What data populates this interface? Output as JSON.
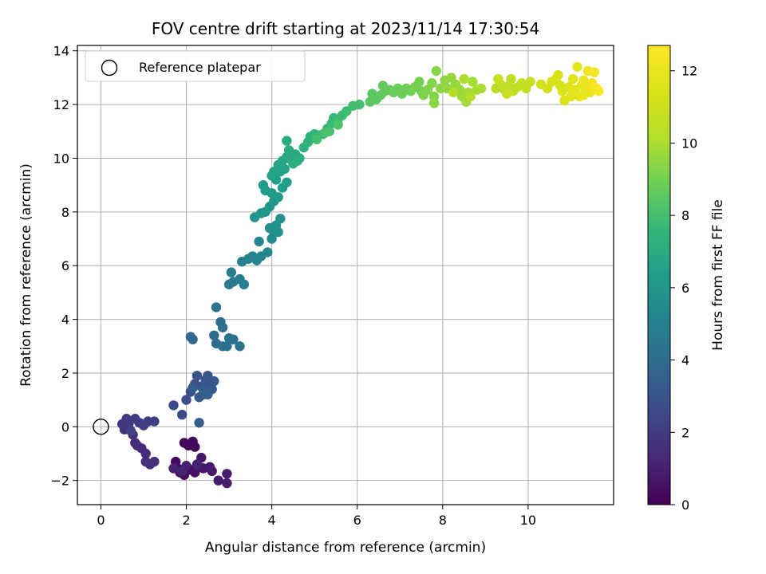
{
  "chart_data": {
    "type": "scatter",
    "title": "FOV centre drift starting at 2023/11/14 17:30:54",
    "xlabel": "Angular distance from reference (arcmin)",
    "ylabel": "Rotation from reference (arcmin)",
    "xlim": [
      -0.55,
      12.0
    ],
    "ylim": [
      -2.9,
      14.2
    ],
    "xticks": [
      0,
      2,
      4,
      6,
      8,
      10
    ],
    "yticks": [
      -2,
      0,
      2,
      4,
      6,
      8,
      10,
      12,
      14
    ],
    "grid": true,
    "legend": {
      "position": "top-left",
      "entries": [
        "Reference platepar"
      ]
    },
    "reference_point": {
      "x": 0,
      "y": 0
    },
    "colorbar": {
      "label": "Hours from first FF file",
      "range": [
        0,
        12.7
      ],
      "ticks": [
        0,
        2,
        4,
        6,
        8,
        10,
        12
      ],
      "colormap": "viridis"
    },
    "points": [
      {
        "x": 1.95,
        "y": -0.6,
        "c": 0.1
      },
      {
        "x": 2.05,
        "y": -0.7,
        "c": 0.15
      },
      {
        "x": 2.15,
        "y": -0.55,
        "c": 0.2
      },
      {
        "x": 2.2,
        "y": -0.75,
        "c": 0.25
      },
      {
        "x": 1.75,
        "y": -1.3,
        "c": 0.3
      },
      {
        "x": 1.8,
        "y": -1.55,
        "c": 0.35
      },
      {
        "x": 1.85,
        "y": -1.7,
        "c": 0.4
      },
      {
        "x": 1.95,
        "y": -1.8,
        "c": 0.45
      },
      {
        "x": 2.1,
        "y": -1.6,
        "c": 0.5
      },
      {
        "x": 2.2,
        "y": -1.7,
        "c": 0.55
      },
      {
        "x": 2.3,
        "y": -1.5,
        "c": 0.6
      },
      {
        "x": 2.4,
        "y": -1.55,
        "c": 0.65
      },
      {
        "x": 2.35,
        "y": -1.15,
        "c": 0.7
      },
      {
        "x": 2.55,
        "y": -1.5,
        "c": 0.75
      },
      {
        "x": 2.6,
        "y": -1.65,
        "c": 0.8
      },
      {
        "x": 2.75,
        "y": -2.0,
        "c": 0.85
      },
      {
        "x": 2.95,
        "y": -2.1,
        "c": 0.9
      },
      {
        "x": 2.95,
        "y": -1.75,
        "c": 0.95
      },
      {
        "x": 2.0,
        "y": -1.45,
        "c": 1.0
      },
      {
        "x": 2.25,
        "y": -1.4,
        "c": 1.05
      },
      {
        "x": 1.7,
        "y": -1.55,
        "c": 1.1
      },
      {
        "x": 1.9,
        "y": -1.65,
        "c": 1.15
      },
      {
        "x": 0.85,
        "y": -0.7,
        "c": 1.3
      },
      {
        "x": 0.95,
        "y": -0.8,
        "c": 1.35
      },
      {
        "x": 0.8,
        "y": -0.6,
        "c": 1.4
      },
      {
        "x": 1.05,
        "y": -1.0,
        "c": 1.45
      },
      {
        "x": 1.05,
        "y": -1.3,
        "c": 1.5
      },
      {
        "x": 1.15,
        "y": -1.4,
        "c": 1.55
      },
      {
        "x": 1.25,
        "y": -1.3,
        "c": 1.6
      },
      {
        "x": 0.75,
        "y": -0.3,
        "c": 1.65
      },
      {
        "x": 0.55,
        "y": -0.1,
        "c": 1.7
      },
      {
        "x": 0.6,
        "y": -0.05,
        "c": 1.75
      },
      {
        "x": 0.65,
        "y": 0.1,
        "c": 1.8
      },
      {
        "x": 0.5,
        "y": 0.1,
        "c": 1.85
      },
      {
        "x": 0.6,
        "y": 0.3,
        "c": 1.9
      },
      {
        "x": 0.8,
        "y": 0.3,
        "c": 1.95
      },
      {
        "x": 0.9,
        "y": 0.15,
        "c": 2.0
      },
      {
        "x": 1.0,
        "y": 0.05,
        "c": 2.05
      },
      {
        "x": 1.1,
        "y": 0.2,
        "c": 2.1
      },
      {
        "x": 1.25,
        "y": 0.2,
        "c": 2.15
      },
      {
        "x": 0.7,
        "y": -0.15,
        "c": 2.2
      },
      {
        "x": 1.7,
        "y": 0.8,
        "c": 2.6
      },
      {
        "x": 1.9,
        "y": 0.45,
        "c": 2.65
      },
      {
        "x": 2.0,
        "y": 1.0,
        "c": 2.7
      },
      {
        "x": 2.1,
        "y": 1.3,
        "c": 2.75
      },
      {
        "x": 2.2,
        "y": 1.6,
        "c": 2.8
      },
      {
        "x": 2.25,
        "y": 1.9,
        "c": 2.85
      },
      {
        "x": 2.35,
        "y": 1.5,
        "c": 2.9
      },
      {
        "x": 2.4,
        "y": 1.2,
        "c": 2.95
      },
      {
        "x": 2.5,
        "y": 1.9,
        "c": 3.0
      },
      {
        "x": 2.55,
        "y": 1.6,
        "c": 3.05
      },
      {
        "x": 2.6,
        "y": 1.4,
        "c": 3.1
      },
      {
        "x": 2.45,
        "y": 1.75,
        "c": 3.15
      },
      {
        "x": 2.65,
        "y": 1.7,
        "c": 3.2
      },
      {
        "x": 2.3,
        "y": 1.1,
        "c": 3.25
      },
      {
        "x": 2.15,
        "y": 1.45,
        "c": 3.3
      },
      {
        "x": 2.3,
        "y": 0.15,
        "c": 3.35
      },
      {
        "x": 2.4,
        "y": 1.35,
        "c": 3.4
      },
      {
        "x": 2.5,
        "y": 1.2,
        "c": 3.45
      },
      {
        "x": 2.1,
        "y": 3.35,
        "c": 3.9
      },
      {
        "x": 2.15,
        "y": 3.25,
        "c": 3.95
      },
      {
        "x": 2.65,
        "y": 3.4,
        "c": 4.0
      },
      {
        "x": 2.7,
        "y": 3.1,
        "c": 4.05
      },
      {
        "x": 2.8,
        "y": 3.9,
        "c": 4.1
      },
      {
        "x": 2.85,
        "y": 3.7,
        "c": 4.15
      },
      {
        "x": 2.85,
        "y": 3.0,
        "c": 4.2
      },
      {
        "x": 2.95,
        "y": 3.0,
        "c": 4.25
      },
      {
        "x": 3.0,
        "y": 3.3,
        "c": 4.3
      },
      {
        "x": 3.1,
        "y": 3.25,
        "c": 4.35
      },
      {
        "x": 3.25,
        "y": 3.0,
        "c": 4.4
      },
      {
        "x": 2.7,
        "y": 4.45,
        "c": 4.5
      },
      {
        "x": 3.0,
        "y": 5.3,
        "c": 4.7
      },
      {
        "x": 3.1,
        "y": 5.4,
        "c": 4.75
      },
      {
        "x": 3.05,
        "y": 5.75,
        "c": 4.8
      },
      {
        "x": 3.25,
        "y": 5.5,
        "c": 4.85
      },
      {
        "x": 3.35,
        "y": 5.3,
        "c": 4.9
      },
      {
        "x": 3.3,
        "y": 6.15,
        "c": 5.0
      },
      {
        "x": 3.45,
        "y": 6.25,
        "c": 5.05
      },
      {
        "x": 3.55,
        "y": 6.35,
        "c": 5.1
      },
      {
        "x": 3.65,
        "y": 6.2,
        "c": 5.15
      },
      {
        "x": 3.75,
        "y": 6.35,
        "c": 5.2
      },
      {
        "x": 3.7,
        "y": 6.9,
        "c": 5.25
      },
      {
        "x": 3.9,
        "y": 6.5,
        "c": 5.3
      },
      {
        "x": 4.0,
        "y": 7.0,
        "c": 5.6
      },
      {
        "x": 4.05,
        "y": 7.25,
        "c": 5.65
      },
      {
        "x": 3.95,
        "y": 7.4,
        "c": 5.7
      },
      {
        "x": 4.1,
        "y": 7.5,
        "c": 5.75
      },
      {
        "x": 4.2,
        "y": 7.75,
        "c": 5.8
      },
      {
        "x": 4.15,
        "y": 7.25,
        "c": 5.85
      },
      {
        "x": 3.85,
        "y": 8.0,
        "c": 5.9
      },
      {
        "x": 3.6,
        "y": 7.8,
        "c": 5.95
      },
      {
        "x": 3.75,
        "y": 7.95,
        "c": 6.0
      },
      {
        "x": 3.95,
        "y": 8.2,
        "c": 6.05
      },
      {
        "x": 4.05,
        "y": 8.4,
        "c": 6.1
      },
      {
        "x": 4.15,
        "y": 8.55,
        "c": 6.15
      },
      {
        "x": 4.0,
        "y": 8.7,
        "c": 6.2
      },
      {
        "x": 3.85,
        "y": 8.8,
        "c": 6.25
      },
      {
        "x": 3.8,
        "y": 9.0,
        "c": 6.3
      },
      {
        "x": 4.25,
        "y": 8.9,
        "c": 6.35
      },
      {
        "x": 4.35,
        "y": 9.1,
        "c": 6.4
      },
      {
        "x": 4.1,
        "y": 9.2,
        "c": 6.45
      },
      {
        "x": 4.0,
        "y": 9.35,
        "c": 6.5
      },
      {
        "x": 4.2,
        "y": 9.5,
        "c": 6.55
      },
      {
        "x": 4.3,
        "y": 9.6,
        "c": 6.6
      },
      {
        "x": 4.05,
        "y": 9.5,
        "c": 6.65
      },
      {
        "x": 4.15,
        "y": 9.75,
        "c": 6.7
      },
      {
        "x": 4.25,
        "y": 9.9,
        "c": 6.75
      },
      {
        "x": 4.35,
        "y": 10.05,
        "c": 6.8
      },
      {
        "x": 4.45,
        "y": 9.95,
        "c": 6.85
      },
      {
        "x": 4.55,
        "y": 10.15,
        "c": 6.9
      },
      {
        "x": 4.65,
        "y": 10.0,
        "c": 6.95
      },
      {
        "x": 4.4,
        "y": 10.3,
        "c": 7.0
      },
      {
        "x": 4.35,
        "y": 10.65,
        "c": 7.05
      },
      {
        "x": 4.5,
        "y": 9.8,
        "c": 7.1
      },
      {
        "x": 4.6,
        "y": 9.9,
        "c": 7.15
      },
      {
        "x": 4.75,
        "y": 10.4,
        "c": 7.3
      },
      {
        "x": 4.85,
        "y": 10.6,
        "c": 7.35
      },
      {
        "x": 4.9,
        "y": 10.8,
        "c": 7.4
      },
      {
        "x": 5.0,
        "y": 10.9,
        "c": 7.45
      },
      {
        "x": 5.1,
        "y": 10.85,
        "c": 7.5
      },
      {
        "x": 5.2,
        "y": 10.9,
        "c": 7.55
      },
      {
        "x": 5.3,
        "y": 11.1,
        "c": 7.6
      },
      {
        "x": 5.4,
        "y": 11.3,
        "c": 7.65
      },
      {
        "x": 5.45,
        "y": 11.5,
        "c": 7.7
      },
      {
        "x": 5.55,
        "y": 11.45,
        "c": 7.75
      },
      {
        "x": 5.65,
        "y": 11.6,
        "c": 7.8
      },
      {
        "x": 5.75,
        "y": 11.75,
        "c": 7.85
      },
      {
        "x": 5.9,
        "y": 11.95,
        "c": 7.9
      },
      {
        "x": 6.05,
        "y": 12.0,
        "c": 7.95
      },
      {
        "x": 5.05,
        "y": 10.7,
        "c": 8.0
      },
      {
        "x": 5.25,
        "y": 10.95,
        "c": 8.05
      },
      {
        "x": 5.35,
        "y": 11.0,
        "c": 8.1
      },
      {
        "x": 5.55,
        "y": 11.25,
        "c": 8.15
      },
      {
        "x": 6.3,
        "y": 12.1,
        "c": 8.4
      },
      {
        "x": 6.35,
        "y": 12.4,
        "c": 8.45
      },
      {
        "x": 6.45,
        "y": 12.2,
        "c": 8.5
      },
      {
        "x": 6.55,
        "y": 12.35,
        "c": 8.55
      },
      {
        "x": 6.65,
        "y": 12.5,
        "c": 8.6
      },
      {
        "x": 6.6,
        "y": 12.7,
        "c": 8.65
      },
      {
        "x": 6.75,
        "y": 12.55,
        "c": 8.7
      },
      {
        "x": 6.85,
        "y": 12.45,
        "c": 8.75
      },
      {
        "x": 6.95,
        "y": 12.6,
        "c": 8.8
      },
      {
        "x": 7.05,
        "y": 12.4,
        "c": 8.85
      },
      {
        "x": 7.15,
        "y": 12.6,
        "c": 8.9
      },
      {
        "x": 7.25,
        "y": 12.5,
        "c": 8.95
      },
      {
        "x": 7.35,
        "y": 12.65,
        "c": 9.0
      },
      {
        "x": 7.45,
        "y": 12.85,
        "c": 9.05
      },
      {
        "x": 7.5,
        "y": 12.5,
        "c": 9.1
      },
      {
        "x": 7.55,
        "y": 12.35,
        "c": 9.15
      },
      {
        "x": 7.65,
        "y": 12.55,
        "c": 9.2
      },
      {
        "x": 7.75,
        "y": 12.8,
        "c": 9.25
      },
      {
        "x": 7.8,
        "y": 12.3,
        "c": 9.3
      },
      {
        "x": 7.85,
        "y": 13.25,
        "c": 9.35
      },
      {
        "x": 7.8,
        "y": 12.05,
        "c": 9.4
      },
      {
        "x": 7.95,
        "y": 12.6,
        "c": 9.45
      },
      {
        "x": 8.05,
        "y": 12.9,
        "c": 9.5
      },
      {
        "x": 8.1,
        "y": 12.6,
        "c": 9.55
      },
      {
        "x": 8.2,
        "y": 13.0,
        "c": 9.6
      },
      {
        "x": 8.3,
        "y": 12.75,
        "c": 9.65
      },
      {
        "x": 8.4,
        "y": 12.55,
        "c": 9.7
      },
      {
        "x": 8.45,
        "y": 12.3,
        "c": 9.75
      },
      {
        "x": 8.55,
        "y": 12.1,
        "c": 9.8
      },
      {
        "x": 8.6,
        "y": 12.45,
        "c": 9.85
      },
      {
        "x": 8.7,
        "y": 12.85,
        "c": 9.9
      },
      {
        "x": 8.8,
        "y": 12.55,
        "c": 9.95
      },
      {
        "x": 8.9,
        "y": 12.6,
        "c": 10.0
      },
      {
        "x": 8.5,
        "y": 12.95,
        "c": 10.05
      },
      {
        "x": 8.25,
        "y": 12.45,
        "c": 10.1
      },
      {
        "x": 8.65,
        "y": 12.3,
        "c": 10.15
      },
      {
        "x": 9.25,
        "y": 12.6,
        "c": 10.3
      },
      {
        "x": 9.35,
        "y": 12.75,
        "c": 10.35
      },
      {
        "x": 9.45,
        "y": 12.55,
        "c": 10.4
      },
      {
        "x": 9.55,
        "y": 12.7,
        "c": 10.45
      },
      {
        "x": 9.6,
        "y": 12.95,
        "c": 10.5
      },
      {
        "x": 9.65,
        "y": 12.5,
        "c": 10.55
      },
      {
        "x": 9.75,
        "y": 12.65,
        "c": 10.6
      },
      {
        "x": 9.85,
        "y": 12.8,
        "c": 10.65
      },
      {
        "x": 9.95,
        "y": 12.6,
        "c": 10.7
      },
      {
        "x": 10.05,
        "y": 12.85,
        "c": 10.75
      },
      {
        "x": 9.3,
        "y": 12.95,
        "c": 10.8
      },
      {
        "x": 9.5,
        "y": 12.4,
        "c": 10.85
      },
      {
        "x": 10.3,
        "y": 12.75,
        "c": 11.2
      },
      {
        "x": 10.45,
        "y": 12.6,
        "c": 11.25
      },
      {
        "x": 10.55,
        "y": 12.85,
        "c": 11.3
      },
      {
        "x": 10.65,
        "y": 12.95,
        "c": 11.35
      },
      {
        "x": 10.75,
        "y": 12.7,
        "c": 11.4
      },
      {
        "x": 10.7,
        "y": 13.1,
        "c": 11.45
      },
      {
        "x": 10.8,
        "y": 12.5,
        "c": 11.5
      },
      {
        "x": 10.85,
        "y": 12.15,
        "c": 11.55
      },
      {
        "x": 10.95,
        "y": 12.65,
        "c": 11.6
      },
      {
        "x": 11.05,
        "y": 12.95,
        "c": 11.65
      },
      {
        "x": 11.1,
        "y": 12.55,
        "c": 11.7
      },
      {
        "x": 11.15,
        "y": 13.4,
        "c": 11.8
      },
      {
        "x": 11.2,
        "y": 12.3,
        "c": 11.85
      },
      {
        "x": 11.25,
        "y": 12.7,
        "c": 11.9
      },
      {
        "x": 11.3,
        "y": 12.9,
        "c": 11.95
      },
      {
        "x": 11.35,
        "y": 12.6,
        "c": 12.0
      },
      {
        "x": 11.4,
        "y": 13.25,
        "c": 12.1
      },
      {
        "x": 11.45,
        "y": 12.45,
        "c": 12.2
      },
      {
        "x": 11.5,
        "y": 12.8,
        "c": 12.3
      },
      {
        "x": 11.55,
        "y": 13.2,
        "c": 12.4
      },
      {
        "x": 11.6,
        "y": 12.6,
        "c": 12.5
      },
      {
        "x": 11.65,
        "y": 12.5,
        "c": 12.6
      },
      {
        "x": 11.0,
        "y": 12.3,
        "c": 11.75
      },
      {
        "x": 11.3,
        "y": 12.35,
        "c": 12.05
      }
    ]
  }
}
